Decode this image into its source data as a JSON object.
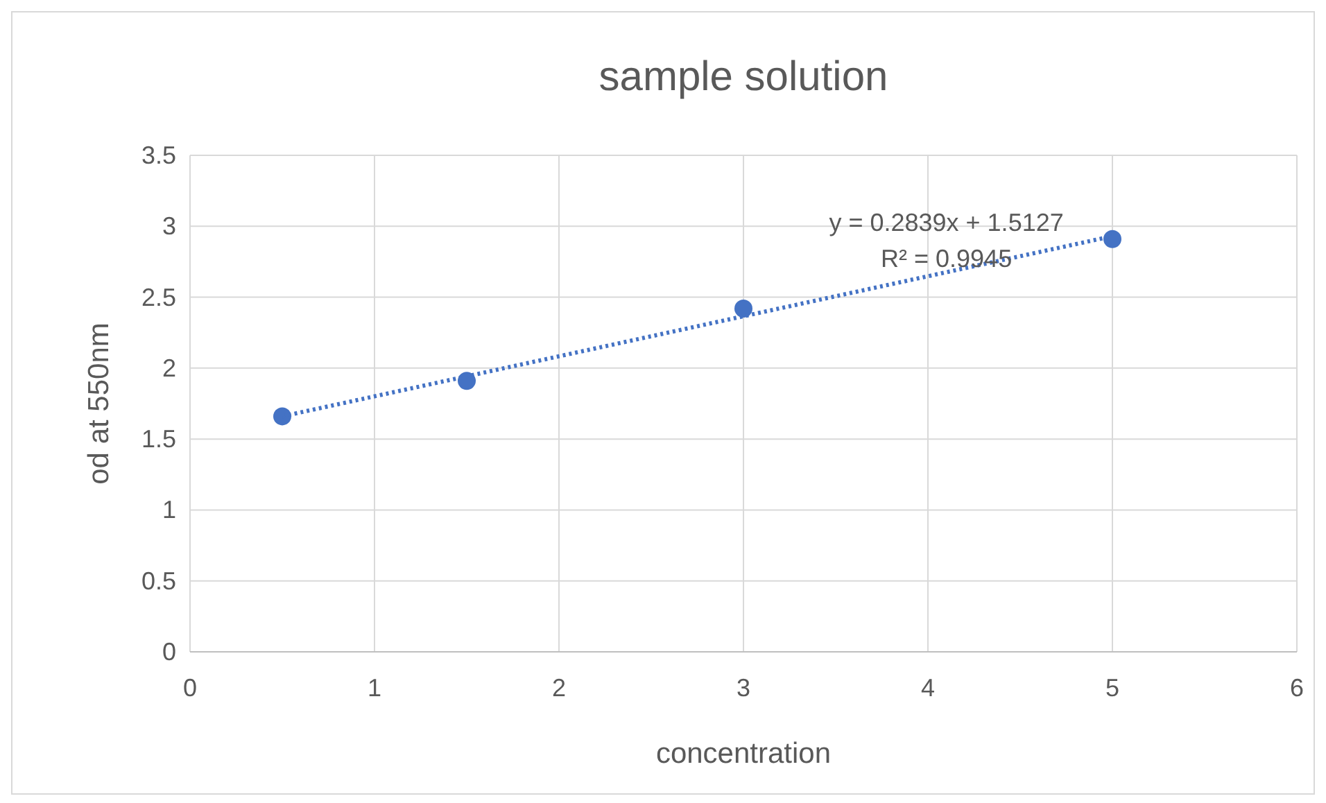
{
  "chart_data": {
    "type": "scatter",
    "title": "sample solution",
    "xlabel": "concentration",
    "ylabel": "od at 550nm",
    "xlim": [
      0,
      6
    ],
    "xticks": [
      0,
      1,
      2,
      3,
      4,
      5,
      6
    ],
    "ylim": [
      0,
      3.5
    ],
    "yticks": [
      0,
      0.5,
      1,
      1.5,
      2,
      2.5,
      3,
      3.5
    ],
    "grid": true,
    "x": [
      0.5,
      1.5,
      3,
      5
    ],
    "series": [
      {
        "color": "#4472c4",
        "marker": "circle",
        "values": [
          1.66,
          1.91,
          2.42,
          2.91
        ]
      },
      {
        "type": "line",
        "color": "#4472c4",
        "line_style": "dotted",
        "x": [
          0.5,
          5
        ],
        "values": [
          1.66,
          2.93
        ]
      }
    ],
    "annotations": [
      "y = 0.2839x + 1.5127",
      "R² = 0.9945"
    ]
  }
}
